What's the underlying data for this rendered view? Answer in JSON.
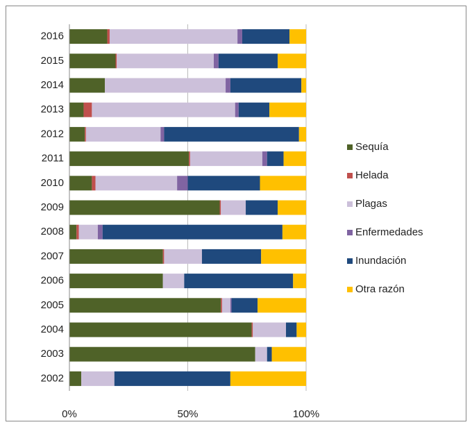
{
  "chart_data": {
    "type": "stacked_bar_horizontal",
    "categories": [
      "2016",
      "2015",
      "2014",
      "2013",
      "2012",
      "2011",
      "2010",
      "2009",
      "2008",
      "2007",
      "2006",
      "2005",
      "2004",
      "2003",
      "2002"
    ],
    "series": [
      {
        "name": "Sequía",
        "color": "#4f6228",
        "values": [
          16,
          19.5,
          15,
          6,
          6.5,
          50.5,
          9.5,
          63.5,
          3,
          39.5,
          39.5,
          64,
          77,
          78.5,
          5
        ]
      },
      {
        "name": "Helada",
        "color": "#c0504d",
        "values": [
          1,
          0.5,
          0,
          3.5,
          0.5,
          0.5,
          1.5,
          0.5,
          1,
          0.5,
          0,
          0.5,
          0.5,
          0,
          0
        ]
      },
      {
        "name": "Plagas",
        "color": "#ccc0da",
        "values": [
          54,
          41,
          51,
          60.5,
          31.5,
          30.5,
          34.5,
          10.5,
          8,
          16,
          9,
          3.5,
          14,
          5,
          14
        ]
      },
      {
        "name": "Enfermedades",
        "color": "#8064a2",
        "values": [
          2,
          2,
          2,
          1.5,
          1.5,
          2,
          4.5,
          0,
          2,
          0,
          0,
          0.5,
          0,
          0,
          0
        ]
      },
      {
        "name": "Inundación",
        "color": "#1f497d",
        "values": [
          20,
          25,
          30,
          13,
          57,
          7,
          30.5,
          13.5,
          76,
          25,
          46,
          11,
          4.5,
          2,
          49
        ]
      },
      {
        "name": "Otra razón",
        "color": "#ffc000",
        "values": [
          7,
          12,
          2,
          15.5,
          3,
          9.5,
          19.5,
          12,
          10,
          19,
          5.5,
          20.5,
          4,
          14.5,
          32
        ]
      }
    ],
    "xlim": [
      0,
      100
    ],
    "xticks": [
      {
        "value": 0,
        "label": "0%"
      },
      {
        "value": 50,
        "label": "50%"
      },
      {
        "value": 100,
        "label": "100%"
      }
    ],
    "grid": true,
    "legend": "right"
  }
}
